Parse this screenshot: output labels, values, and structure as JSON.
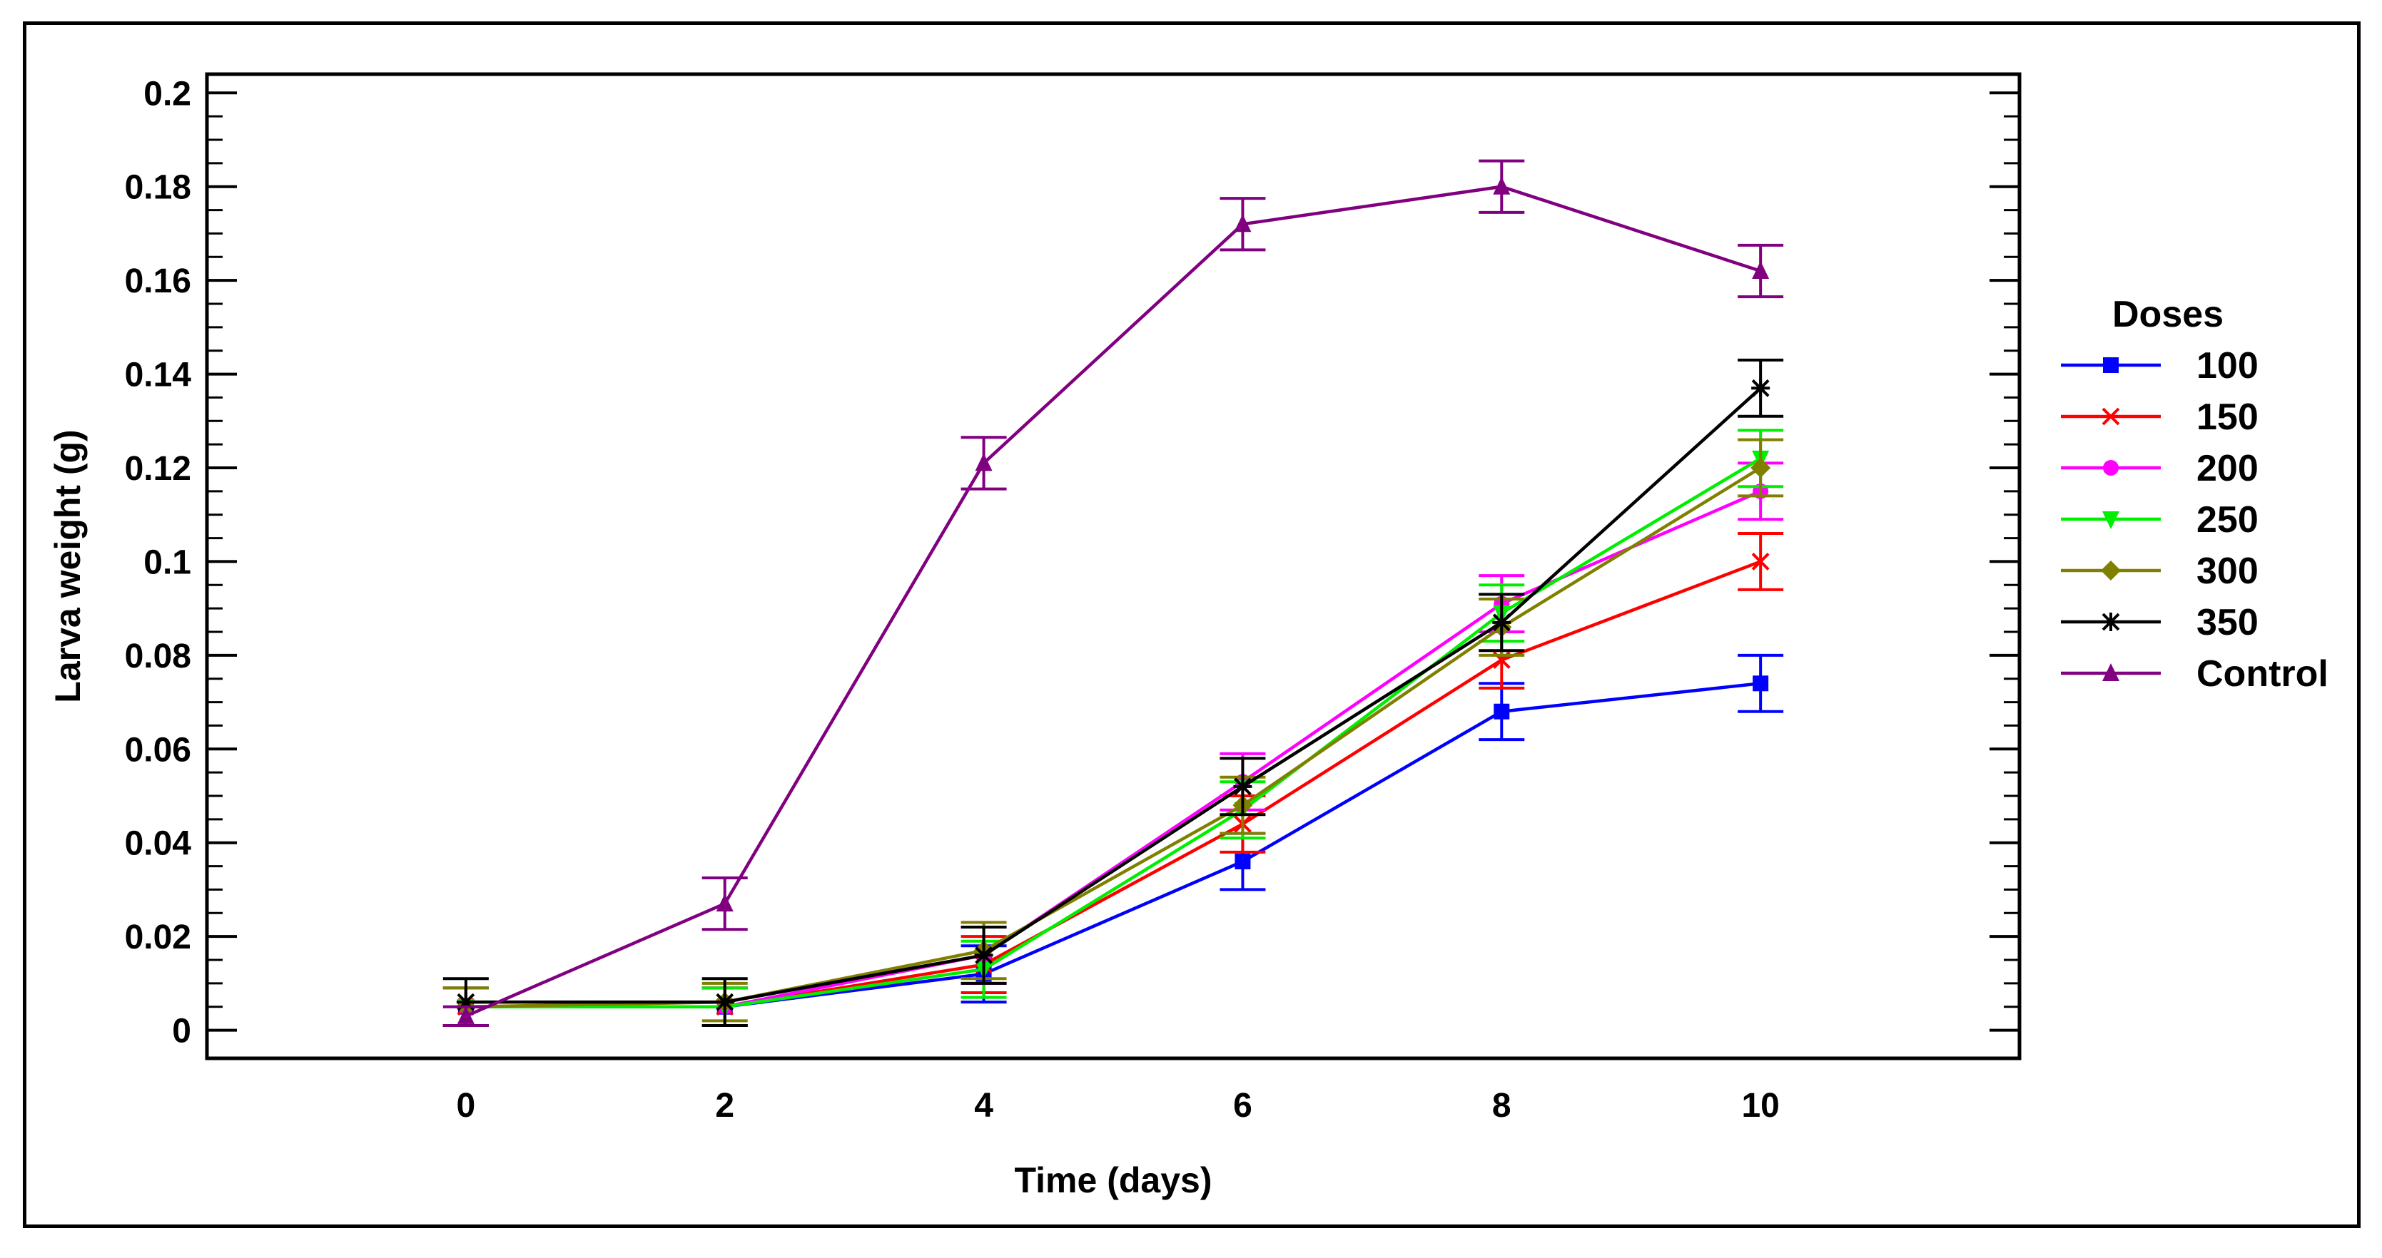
{
  "chart_data": {
    "type": "line",
    "title": "",
    "xlabel": "Time (days)",
    "ylabel": "Larva weight (g)",
    "xlim": [
      -2,
      12
    ],
    "ylim": [
      -0.006,
      0.204
    ],
    "x": [
      0,
      2,
      4,
      6,
      8,
      10
    ],
    "x_tick_labels": [
      "0",
      "2",
      "4",
      "6",
      "8",
      "10"
    ],
    "y_ticks": [
      0,
      0.02,
      0.04,
      0.06,
      0.08,
      0.1,
      0.12,
      0.14,
      0.16,
      0.18,
      0.2
    ],
    "y_tick_labels": [
      "0",
      "0.02",
      "0.04",
      "0.06",
      "0.08",
      "0.1",
      "0.12",
      "0.14",
      "0.16",
      "0.18",
      "0.2"
    ],
    "legend_title": "Doses",
    "legend_position": "right",
    "series": [
      {
        "name": "100",
        "color": "#0000ff",
        "marker": "square",
        "values": [
          0.005,
          0.005,
          0.012,
          0.036,
          0.068,
          0.074
        ],
        "errors": [
          0.004,
          0.004,
          0.006,
          0.006,
          0.006,
          0.006
        ]
      },
      {
        "name": "150",
        "color": "#ff0000",
        "marker": "x",
        "values": [
          0.005,
          0.005,
          0.014,
          0.044,
          0.079,
          0.1
        ],
        "errors": [
          0.004,
          0.004,
          0.006,
          0.006,
          0.006,
          0.006
        ]
      },
      {
        "name": "200",
        "color": "#ff00ff",
        "marker": "circle",
        "values": [
          0.005,
          0.005,
          0.016,
          0.053,
          0.091,
          0.115
        ],
        "errors": [
          0.004,
          0.004,
          0.006,
          0.006,
          0.006,
          0.006
        ]
      },
      {
        "name": "250",
        "color": "#00ee00",
        "marker": "triangle-down",
        "values": [
          0.005,
          0.005,
          0.013,
          0.047,
          0.089,
          0.122
        ],
        "errors": [
          0.004,
          0.004,
          0.006,
          0.006,
          0.006,
          0.006
        ]
      },
      {
        "name": "300",
        "color": "#808000",
        "marker": "diamond",
        "values": [
          0.005,
          0.006,
          0.017,
          0.048,
          0.086,
          0.12
        ],
        "errors": [
          0.004,
          0.004,
          0.006,
          0.006,
          0.006,
          0.006
        ]
      },
      {
        "name": "350",
        "color": "#000000",
        "marker": "asterisk",
        "values": [
          0.006,
          0.006,
          0.016,
          0.052,
          0.087,
          0.137
        ],
        "errors": [
          0.005,
          0.005,
          0.006,
          0.006,
          0.006,
          0.006
        ]
      },
      {
        "name": "Control",
        "color": "#800080",
        "marker": "triangle-up",
        "values": [
          0.003,
          0.027,
          0.121,
          0.172,
          0.18,
          0.162
        ],
        "errors": [
          0.002,
          0.0055,
          0.0055,
          0.0055,
          0.0055,
          0.0055
        ]
      }
    ]
  }
}
